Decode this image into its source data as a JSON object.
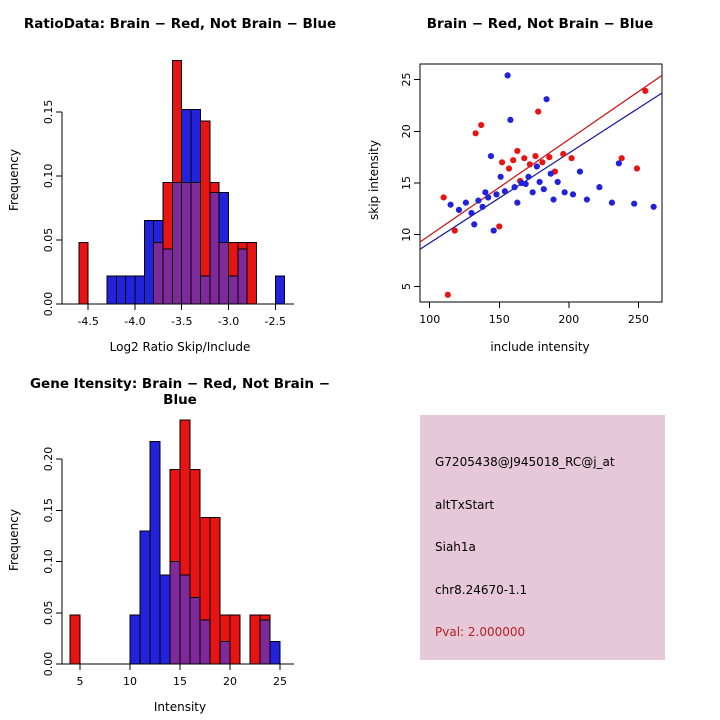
{
  "figure": {
    "background": "#FFFFFF",
    "colors": {
      "red": "#E81414",
      "blue": "#2222DC",
      "overlap": "#7E2A9B",
      "line_red": "#CC1010",
      "line_blue": "#14149B",
      "axis": "#000000"
    }
  },
  "panels": {
    "ratio_hist": {
      "title": "RatioData: Brain − Red, Not Brain − Blue",
      "xlabel": "Log2 Ratio Skip/Include",
      "ylabel": "Frequency"
    },
    "scatter": {
      "title": "Brain − Red, Not Brain − Blue",
      "xlabel": "include intensity",
      "ylabel": "skip intensity"
    },
    "gene_hist": {
      "title": "Gene Itensity: Brain − Red, Not Brain − Blue",
      "xlabel": "Intensity",
      "ylabel": "Frequency"
    },
    "info_box": {
      "background": "#E6C8D8",
      "probe_id": "G7205438@J945018_RC@j_at",
      "event_type": "altTxStart",
      "gene_symbol": "Siah1a",
      "location": "chr8.24670-1.1",
      "pval_text": "Pval: 2.000000",
      "pval_color": "#B22222"
    }
  },
  "chart_data": [
    {
      "id": "ratio_hist",
      "type": "bar",
      "variant": "overlaid-histograms",
      "title": "RatioData: Brain − Red, Not Brain − Blue",
      "xlabel": "Log2 Ratio Skip/Include",
      "ylabel": "Frequency",
      "grid": false,
      "legend": "none",
      "xlim": [
        -4.78,
        -2.3
      ],
      "ylim": [
        0,
        0.192
      ],
      "bin_width": 0.1,
      "x_ticks": [
        {
          "v": -4.5,
          "label": "-4.5"
        },
        {
          "v": -4.0,
          "label": "-4.0"
        },
        {
          "v": -3.5,
          "label": "-3.5"
        },
        {
          "v": -3.0,
          "label": "-3.0"
        },
        {
          "v": -2.5,
          "label": "-2.5"
        }
      ],
      "y_ticks": [
        {
          "v": 0,
          "label": "0.00"
        },
        {
          "v": 0.05,
          "label": "0.05"
        },
        {
          "v": 0.1,
          "label": "0.10"
        },
        {
          "v": 0.15,
          "label": "0.15"
        }
      ],
      "series": [
        {
          "name": "Brain",
          "color_key": "red",
          "bins": [
            {
              "x": -4.6,
              "h": 0.048
            },
            {
              "x": -3.8,
              "h": 0.048
            },
            {
              "x": -3.7,
              "h": 0.095
            },
            {
              "x": -3.6,
              "h": 0.19
            },
            {
              "x": -3.5,
              "h": 0.095
            },
            {
              "x": -3.4,
              "h": 0.095
            },
            {
              "x": -3.3,
              "h": 0.143
            },
            {
              "x": -3.2,
              "h": 0.095
            },
            {
              "x": -3.1,
              "h": 0.048
            },
            {
              "x": -3.0,
              "h": 0.048
            },
            {
              "x": -2.9,
              "h": 0.048
            },
            {
              "x": -2.8,
              "h": 0.048
            }
          ]
        },
        {
          "name": "Not Brain",
          "color_key": "blue",
          "bins": [
            {
              "x": -4.3,
              "h": 0.022
            },
            {
              "x": -4.2,
              "h": 0.022
            },
            {
              "x": -4.1,
              "h": 0.022
            },
            {
              "x": -4.0,
              "h": 0.022
            },
            {
              "x": -3.9,
              "h": 0.065
            },
            {
              "x": -3.8,
              "h": 0.065
            },
            {
              "x": -3.7,
              "h": 0.043
            },
            {
              "x": -3.6,
              "h": 0.095
            },
            {
              "x": -3.5,
              "h": 0.152
            },
            {
              "x": -3.4,
              "h": 0.152
            },
            {
              "x": -3.3,
              "h": 0.022
            },
            {
              "x": -3.2,
              "h": 0.087
            },
            {
              "x": -3.1,
              "h": 0.087
            },
            {
              "x": -3.0,
              "h": 0.022
            },
            {
              "x": -2.9,
              "h": 0.043
            },
            {
              "x": -2.5,
              "h": 0.022
            }
          ]
        }
      ]
    },
    {
      "id": "scatter",
      "type": "scatter",
      "title": "Brain − Red, Not Brain − Blue",
      "xlabel": "include intensity",
      "ylabel": "skip intensity",
      "grid": false,
      "legend": "none",
      "xlim": [
        93,
        267
      ],
      "ylim": [
        3.5,
        26.5
      ],
      "x_ticks": [
        {
          "v": 100,
          "label": "100"
        },
        {
          "v": 150,
          "label": "150"
        },
        {
          "v": 200,
          "label": "200"
        },
        {
          "v": 250,
          "label": "250"
        }
      ],
      "y_ticks": [
        {
          "v": 5,
          "label": "5"
        },
        {
          "v": 10,
          "label": "10"
        },
        {
          "v": 15,
          "label": "15"
        },
        {
          "v": 20,
          "label": "20"
        },
        {
          "v": 25,
          "label": "25"
        }
      ],
      "series": [
        {
          "name": "Brain",
          "color_key": "red",
          "points": [
            [
              113,
              4.2
            ],
            [
              110,
              13.6
            ],
            [
              118,
              10.4
            ],
            [
              133,
              19.8
            ],
            [
              137,
              20.6
            ],
            [
              150,
              10.8
            ],
            [
              152,
              17.0
            ],
            [
              157,
              16.4
            ],
            [
              160,
              17.2
            ],
            [
              163,
              18.1
            ],
            [
              165,
              15.2
            ],
            [
              168,
              17.4
            ],
            [
              172,
              16.8
            ],
            [
              176,
              17.6
            ],
            [
              178,
              21.9
            ],
            [
              181,
              17.0
            ],
            [
              186,
              17.5
            ],
            [
              190,
              16.1
            ],
            [
              196,
              17.8
            ],
            [
              202,
              17.4
            ],
            [
              238,
              17.4
            ],
            [
              249,
              16.4
            ],
            [
              255,
              23.9
            ]
          ]
        },
        {
          "name": "Not Brain",
          "color_key": "blue",
          "points": [
            [
              115,
              12.9
            ],
            [
              121,
              12.4
            ],
            [
              126,
              13.1
            ],
            [
              130,
              12.1
            ],
            [
              132,
              11.0
            ],
            [
              135,
              13.3
            ],
            [
              138,
              12.7
            ],
            [
              140,
              14.1
            ],
            [
              142,
              13.6
            ],
            [
              144,
              17.6
            ],
            [
              146,
              10.4
            ],
            [
              148,
              13.9
            ],
            [
              151,
              15.6
            ],
            [
              154,
              14.2
            ],
            [
              156,
              25.4
            ],
            [
              158,
              21.1
            ],
            [
              161,
              14.6
            ],
            [
              163,
              13.1
            ],
            [
              166,
              15.0
            ],
            [
              169,
              14.9
            ],
            [
              171,
              15.6
            ],
            [
              174,
              14.1
            ],
            [
              177,
              16.6
            ],
            [
              179,
              15.1
            ],
            [
              182,
              14.4
            ],
            [
              184,
              23.1
            ],
            [
              187,
              15.9
            ],
            [
              189,
              13.4
            ],
            [
              192,
              15.1
            ],
            [
              197,
              14.1
            ],
            [
              203,
              13.9
            ],
            [
              208,
              16.1
            ],
            [
              213,
              13.4
            ],
            [
              222,
              14.6
            ],
            [
              231,
              13.1
            ],
            [
              236,
              16.9
            ],
            [
              247,
              13.0
            ],
            [
              261,
              12.7
            ]
          ]
        }
      ],
      "fit_lines": [
        {
          "name": "brain-fit",
          "color_key": "line_red",
          "from": [
            93,
            9.3
          ],
          "to": [
            267,
            25.4
          ]
        },
        {
          "name": "notbrain-fit",
          "color_key": "line_blue",
          "from": [
            93,
            8.6
          ],
          "to": [
            267,
            23.7
          ]
        }
      ]
    },
    {
      "id": "gene_hist",
      "type": "bar",
      "variant": "overlaid-histograms",
      "title": "Gene Itensity: Brain − Red, Not Brain − Blue",
      "xlabel": "Intensity",
      "ylabel": "Frequency",
      "grid": false,
      "legend": "none",
      "xlim": [
        3.2,
        26.4
      ],
      "ylim": [
        0,
        0.24
      ],
      "bin_width": 1,
      "x_ticks": [
        {
          "v": 5,
          "label": "5"
        },
        {
          "v": 10,
          "label": "10"
        },
        {
          "v": 15,
          "label": "15"
        },
        {
          "v": 20,
          "label": "20"
        },
        {
          "v": 25,
          "label": "25"
        }
      ],
      "y_ticks": [
        {
          "v": 0,
          "label": "0.00"
        },
        {
          "v": 0.05,
          "label": "0.05"
        },
        {
          "v": 0.1,
          "label": "0.10"
        },
        {
          "v": 0.15,
          "label": "0.15"
        },
        {
          "v": 0.2,
          "label": "0.20"
        }
      ],
      "series": [
        {
          "name": "Brain",
          "color_key": "red",
          "bins": [
            {
              "x": 4,
              "h": 0.048
            },
            {
              "x": 14,
              "h": 0.19
            },
            {
              "x": 15,
              "h": 0.238
            },
            {
              "x": 16,
              "h": 0.19
            },
            {
              "x": 17,
              "h": 0.143
            },
            {
              "x": 18,
              "h": 0.143
            },
            {
              "x": 19,
              "h": 0.048
            },
            {
              "x": 20,
              "h": 0.048
            },
            {
              "x": 22,
              "h": 0.048
            },
            {
              "x": 23,
              "h": 0.048
            }
          ]
        },
        {
          "name": "Not Brain",
          "color_key": "blue",
          "bins": [
            {
              "x": 10,
              "h": 0.048
            },
            {
              "x": 11,
              "h": 0.13
            },
            {
              "x": 12,
              "h": 0.217
            },
            {
              "x": 13,
              "h": 0.087
            },
            {
              "x": 14,
              "h": 0.1
            },
            {
              "x": 15,
              "h": 0.087
            },
            {
              "x": 16,
              "h": 0.065
            },
            {
              "x": 17,
              "h": 0.043
            },
            {
              "x": 19,
              "h": 0.022
            },
            {
              "x": 23,
              "h": 0.043
            },
            {
              "x": 24,
              "h": 0.022
            }
          ]
        }
      ]
    }
  ]
}
